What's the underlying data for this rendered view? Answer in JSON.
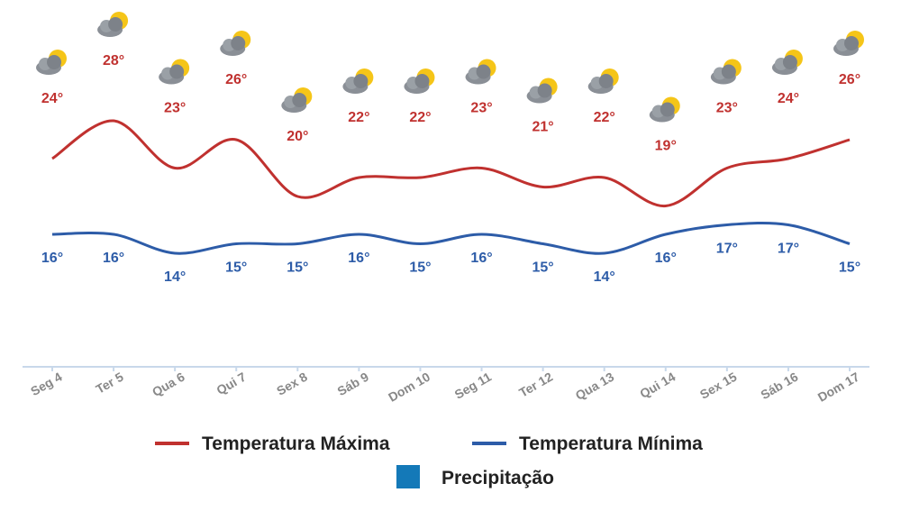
{
  "chart_data": {
    "type": "line",
    "categories": [
      "Seg 4",
      "Ter 5",
      "Qua 6",
      "Qui 7",
      "Sex 8",
      "Sáb 9",
      "Dom 10",
      "Seg 11",
      "Ter 12",
      "Qua 13",
      "Qui 14",
      "Sex 15",
      "Sáb 16",
      "Dom 17"
    ],
    "series": [
      {
        "name": "Temperatura Máxima",
        "color": "#c0312f",
        "values": [
          24,
          28,
          23,
          26,
          20,
          22,
          22,
          23,
          21,
          22,
          19,
          23,
          24,
          26
        ],
        "value_labels": [
          "24°",
          "28°",
          "23°",
          "26°",
          "20°",
          "22°",
          "22°",
          "23°",
          "21°",
          "22°",
          "19°",
          "23°",
          "24°",
          "26°"
        ]
      },
      {
        "name": "Temperatura Mínima",
        "color": "#2d5ca8",
        "values": [
          16,
          16,
          14,
          15,
          15,
          16,
          15,
          16,
          15,
          14,
          16,
          17,
          17,
          15
        ],
        "value_labels": [
          "16°",
          "16°",
          "14°",
          "15°",
          "15°",
          "16°",
          "15°",
          "16°",
          "15°",
          "14°",
          "16°",
          "17°",
          "17°",
          "15°"
        ]
      },
      {
        "name": "Precipitação",
        "color": "#1479b8",
        "values": [
          null,
          null,
          null,
          null,
          null,
          null,
          null,
          null,
          null,
          null,
          null,
          null,
          null,
          null
        ]
      }
    ],
    "ylim": [
      2,
      30
    ]
  }
}
